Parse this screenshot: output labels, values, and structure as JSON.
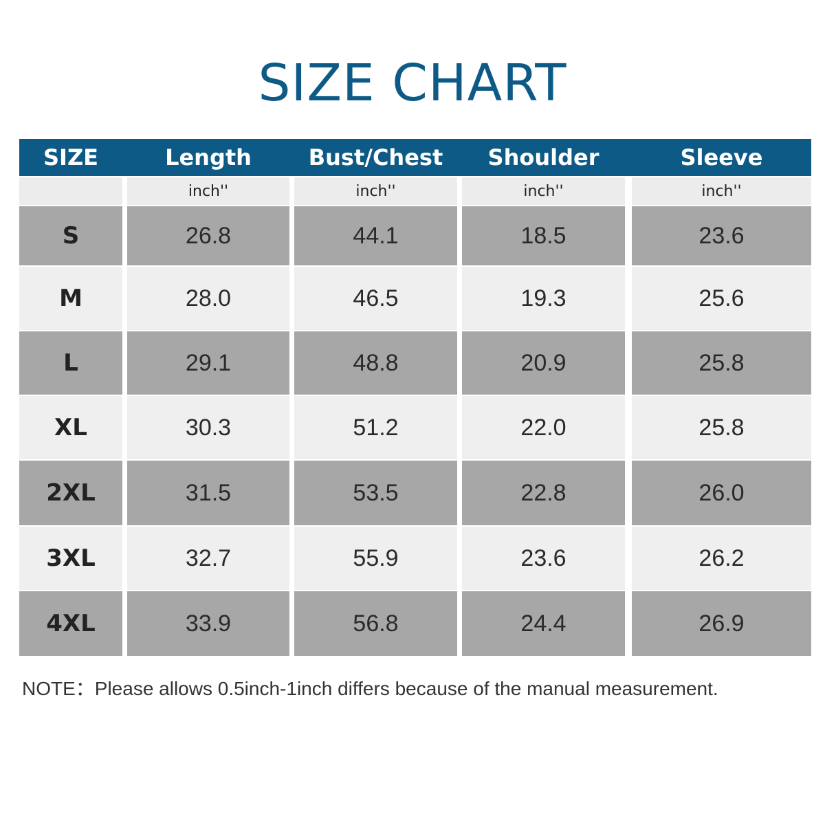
{
  "header": {
    "title": "SIZE CHART"
  },
  "table": {
    "columns": [
      "SIZE",
      "Length",
      "Bust/Chest",
      "Shoulder",
      "Sleeve"
    ],
    "units": [
      "inch''",
      "inch''",
      "inch''",
      "inch''"
    ],
    "rows": [
      [
        "S",
        "26.8",
        "44.1",
        "18.5",
        "23.6"
      ],
      [
        "M",
        "28.0",
        "46.5",
        "19.3",
        "25.6"
      ],
      [
        "L",
        "29.1",
        "48.8",
        "20.9",
        "25.8"
      ],
      [
        "XL",
        "30.3",
        "51.2",
        "22.0",
        "25.8"
      ],
      [
        "2XL",
        "31.5",
        "53.5",
        "22.8",
        "26.0"
      ],
      [
        "3XL",
        "32.7",
        "55.9",
        "23.6",
        "26.2"
      ],
      [
        "4XL",
        "33.9",
        "56.8",
        "24.4",
        "26.9"
      ]
    ]
  },
  "note": "NOTE：Please allows 0.5inch-1inch differs because of the manual measurement."
}
